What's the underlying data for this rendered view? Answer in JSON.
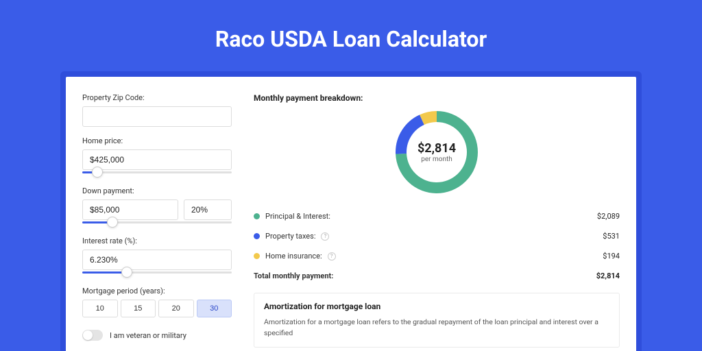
{
  "page": {
    "title": "Raco USDA Loan Calculator",
    "background_color": "#3a5ce8",
    "shadow_color": "#2f4edb",
    "panel_color": "#ffffff"
  },
  "form": {
    "zip": {
      "label": "Property Zip Code:",
      "value": ""
    },
    "home_price": {
      "label": "Home price:",
      "value": "$425,000",
      "slider_pct": 10
    },
    "down_payment": {
      "label": "Down payment:",
      "value": "$85,000",
      "pct_value": "20%",
      "slider_pct": 20
    },
    "interest_rate": {
      "label": "Interest rate (%):",
      "value": "6.230%",
      "slider_pct": 30
    },
    "mortgage_period": {
      "label": "Mortgage period (years):",
      "options": [
        "10",
        "15",
        "20",
        "30"
      ],
      "active_index": 3
    },
    "veteran_toggle": {
      "label": "I am veteran or military",
      "on": false
    }
  },
  "breakdown": {
    "heading": "Monthly payment breakdown:",
    "donut": {
      "center_amount": "$2,814",
      "center_sub": "per month",
      "ring_thickness": 16,
      "ring_radius": 52,
      "segments": [
        {
          "key": "principal_interest",
          "color": "#4db28f",
          "fraction": 0.742
        },
        {
          "key": "property_taxes",
          "color": "#3a5ce8",
          "fraction": 0.189
        },
        {
          "key": "home_insurance",
          "color": "#f2c94c",
          "fraction": 0.069
        }
      ]
    },
    "lines": [
      {
        "dot": "#4db28f",
        "label": "Principal & Interest:",
        "help": false,
        "value": "$2,089"
      },
      {
        "dot": "#3a5ce8",
        "label": "Property taxes:",
        "help": true,
        "value": "$531"
      },
      {
        "dot": "#f2c94c",
        "label": "Home insurance:",
        "help": true,
        "value": "$194"
      }
    ],
    "total": {
      "label": "Total monthly payment:",
      "value": "$2,814"
    }
  },
  "amortization": {
    "heading": "Amortization for mortgage loan",
    "body": "Amortization for a mortgage loan refers to the gradual repayment of the loan principal and interest over a specified"
  }
}
